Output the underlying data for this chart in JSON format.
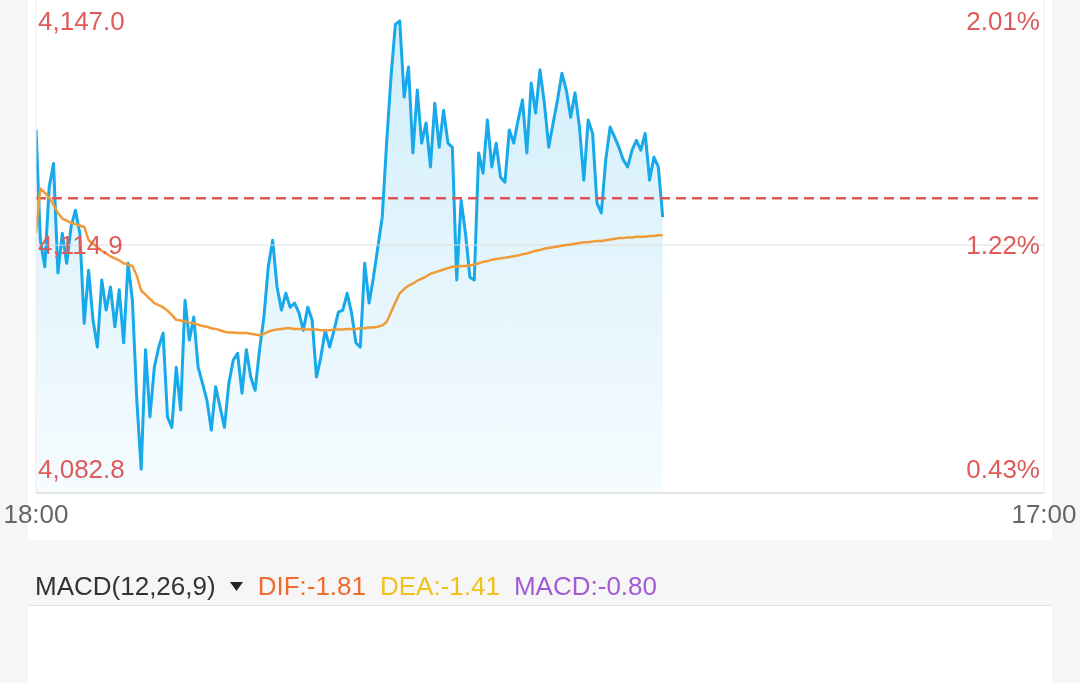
{
  "chart_data": [
    {
      "type": "line",
      "categories": [
        "18:00",
        null,
        null,
        null,
        null,
        null,
        null,
        null,
        null,
        null,
        null,
        null,
        null,
        null,
        null,
        null,
        null,
        null,
        null,
        null,
        null,
        null,
        null,
        null,
        null,
        null,
        null,
        null,
        null,
        null,
        null,
        null,
        null,
        null,
        null,
        null,
        null,
        null,
        null,
        null,
        null,
        null,
        null,
        null,
        null,
        null,
        null,
        null,
        null,
        null,
        null,
        null,
        null,
        null,
        null,
        null,
        null,
        null,
        null,
        null,
        null,
        null,
        null,
        null,
        null,
        null,
        null,
        null,
        null,
        null,
        null,
        null,
        null,
        null,
        null,
        null,
        null,
        null,
        null,
        null,
        null,
        null,
        null,
        null,
        null,
        null,
        null,
        null,
        null,
        null,
        null,
        null,
        null,
        null,
        null,
        null,
        null,
        null,
        null,
        null,
        null,
        null,
        null,
        null,
        null,
        null,
        null,
        null,
        null,
        null,
        null,
        null,
        null,
        null,
        null,
        null,
        null,
        null,
        null,
        null,
        null,
        null,
        null,
        null,
        null,
        null,
        null,
        null,
        null,
        null,
        null,
        null,
        null,
        null,
        null,
        null,
        null,
        null,
        null,
        null,
        null,
        null,
        null,
        null,
        null,
        null,
        null,
        null,
        null,
        null,
        null,
        null,
        null,
        null,
        null,
        null,
        null,
        null,
        null,
        null,
        null,
        null,
        null,
        null,
        null,
        null,
        null,
        null,
        null,
        null,
        null,
        null,
        null,
        null,
        null,
        null,
        null,
        null,
        null,
        null,
        null,
        null,
        null,
        null,
        null,
        null,
        null,
        null,
        null,
        null,
        null,
        null,
        null,
        null,
        null,
        null,
        null,
        null,
        null,
        null,
        null,
        null,
        null,
        null,
        null,
        null,
        null,
        null,
        null,
        null,
        null,
        null,
        null,
        null,
        null,
        null,
        null,
        null,
        null,
        null,
        null,
        null,
        null,
        null,
        null,
        null,
        null,
        null,
        null,
        null,
        "17:00"
      ],
      "ylim": [
        4079.4,
        4150.0
      ],
      "yticks": [
        {
          "value": 4082.8,
          "label": "4,082.8"
        },
        {
          "value": 4114.9,
          "label": "4,114.9"
        },
        {
          "value": 4147.0,
          "label": "4,147.0"
        }
      ],
      "y2lim": [
        0.346,
        2.084
      ],
      "y2ticks": [
        {
          "value": 0.43,
          "label": "0.43%"
        },
        {
          "value": 1.22,
          "label": "1.22%"
        },
        {
          "value": 2.01,
          "label": "2.01%"
        }
      ],
      "marker": "none",
      "series": [
        {
          "type": "area",
          "color": "#18a9ea",
          "values": [
            4131.4,
            4115.6,
            4111.8,
            4123.2,
            4126.6,
            4110.9,
            4116.6,
            4112.3,
            4117.5,
            4119.9,
            4116.6,
            4103.7,
            4111.3,
            4104.2,
            4100.3,
            4109.9,
            4105.6,
            4108.9,
            4103.2,
            4108.5,
            4100.9,
            4112.3,
            4107.0,
            4092.7,
            4082.8,
            4099.9,
            4090.3,
            4097.4,
            4100.3,
            4102.3,
            4090.3,
            4088.8,
            4097.4,
            4091.3,
            4107.0,
            4101.3,
            4104.6,
            4097.4,
            4095.1,
            4092.7,
            4088.4,
            4094.6,
            4091.7,
            4088.8,
            4095.1,
            4098.4,
            4099.4,
            4093.7,
            4099.9,
            4096.0,
            4094.1,
            4099.9,
            4104.6,
            4111.8,
            4115.6,
            4108.9,
            4105.6,
            4108.0,
            4106.0,
            4106.6,
            4105.2,
            4102.7,
            4106.0,
            4104.2,
            4096.0,
            4098.9,
            4102.7,
            4100.3,
            4102.7,
            4105.3,
            4105.6,
            4108.0,
            4105.2,
            4100.9,
            4100.3,
            4112.3,
            4106.6,
            4110.3,
            4114.6,
            4118.9,
            4129.5,
            4139.0,
            4146.5,
            4147.0,
            4136.1,
            4140.4,
            4128.1,
            4137.1,
            4129.5,
            4132.4,
            4126.1,
            4135.2,
            4128.9,
            4134.2,
            4129.5,
            4128.9,
            4109.9,
            4121.3,
            4116.6,
            4110.3,
            4109.9,
            4128.1,
            4125.2,
            4132.8,
            4126.1,
            4129.5,
            4124.6,
            4123.9,
            4131.4,
            4129.5,
            4132.8,
            4135.7,
            4128.1,
            4138.1,
            4133.8,
            4140.0,
            4135.2,
            4128.9,
            4132.4,
            4135.7,
            4139.5,
            4137.1,
            4133.2,
            4136.7,
            4131.8,
            4124.2,
            4132.8,
            4130.9,
            4120.9,
            4119.5,
            4127.1,
            4131.8,
            4130.4,
            4128.9,
            4127.1,
            4126.1,
            4128.5,
            4129.9,
            4128.5,
            4130.9,
            4124.2,
            4127.5,
            4126.1,
            4118.9,
            null,
            null,
            null,
            null,
            null,
            null,
            null,
            null,
            null,
            null,
            null,
            null,
            null,
            null,
            null,
            null,
            null,
            null,
            null,
            null,
            null,
            null,
            null,
            null,
            null,
            null,
            null,
            null,
            null,
            null,
            null,
            null,
            null,
            null,
            null,
            null,
            null,
            null,
            null,
            null,
            null,
            null,
            null,
            null,
            null,
            null,
            null,
            null,
            null,
            null,
            null,
            null,
            null,
            null,
            null,
            null,
            null,
            null,
            null,
            null,
            null,
            null,
            null,
            null,
            null,
            null,
            null,
            null,
            null,
            null,
            null,
            null,
            null,
            null,
            null,
            null,
            null,
            null,
            null,
            null,
            null,
            null,
            null,
            null,
            null,
            null,
            null
          ]
        },
        {
          "type": "line",
          "color": "#ee9b38",
          "values": [
            4116.6,
            4123.0,
            4122.4,
            4121.7,
            4120.7,
            4119.5,
            4118.7,
            4118.4,
            4118.1,
            4117.9,
            4117.7,
            4117.5,
            4115.6,
            4115.1,
            4114.6,
            4114.1,
            4113.7,
            4113.3,
            4113.0,
            4112.7,
            4112.3,
            4112.1,
            4111.9,
            4110.5,
            4108.4,
            4107.8,
            4107.2,
            4106.6,
            4106.3,
            4106.0,
            4105.5,
            4104.9,
            4104.2,
            4104.1,
            4104.0,
            4103.8,
            4103.7,
            4103.5,
            4103.3,
            4103.2,
            4103.0,
            4102.9,
            4102.7,
            4102.5,
            4102.4,
            4102.4,
            4102.3,
            4102.3,
            4102.3,
            4102.2,
            4102.1,
            4102.0,
            4102.2,
            4102.5,
            4102.7,
            4102.8,
            4102.9,
            4103.0,
            4103.0,
            4102.9,
            4102.9,
            4102.9,
            4102.8,
            4102.8,
            4102.8,
            4102.7,
            4102.7,
            4102.7,
            4102.8,
            4102.8,
            4102.8,
            4102.9,
            4102.9,
            4102.9,
            4103.0,
            4103.0,
            4103.1,
            4103.1,
            4103.2,
            4103.4,
            4103.9,
            4105.3,
            4106.7,
            4108.0,
            4108.6,
            4109.1,
            4109.4,
            4109.8,
            4110.1,
            4110.4,
            4110.8,
            4111.0,
            4111.2,
            4111.4,
            4111.6,
            4111.8,
            4111.8,
            4111.9,
            4111.9,
            4112.0,
            4112.1,
            4112.3,
            4112.5,
            4112.6,
            4112.8,
            4112.9,
            4113.0,
            4113.1,
            4113.2,
            4113.3,
            4113.4,
            4113.6,
            4113.7,
            4113.9,
            4114.1,
            4114.2,
            4114.4,
            4114.5,
            4114.6,
            4114.7,
            4114.8,
            4114.9,
            4115.0,
            4115.1,
            4115.2,
            4115.3,
            4115.3,
            4115.4,
            4115.5,
            4115.5,
            4115.6,
            4115.7,
            4115.8,
            4115.9,
            4115.9,
            4116.0,
            4116.0,
            4116.1,
            4116.1,
            4116.1,
            4116.2,
            4116.2,
            4116.3,
            4116.3,
            null,
            null,
            null,
            null,
            null,
            null,
            null,
            null,
            null,
            null,
            null,
            null,
            null,
            null,
            null,
            null,
            null,
            null,
            null,
            null,
            null,
            null,
            null,
            null,
            null,
            null,
            null,
            null,
            null,
            null,
            null,
            null,
            null,
            null,
            null,
            null,
            null,
            null,
            null,
            null,
            null,
            null,
            null,
            null,
            null,
            null,
            null,
            null,
            null,
            null,
            null,
            null,
            null,
            null,
            null,
            null,
            null,
            null,
            null,
            null,
            null,
            null,
            null,
            null,
            null,
            null,
            null,
            null,
            null,
            null,
            null,
            null,
            null,
            null,
            null,
            null,
            null,
            null,
            null,
            null,
            null,
            null,
            null,
            null,
            null,
            null,
            null
          ]
        }
      ],
      "ref_lines": [
        {
          "axis": "y",
          "value": 4114.9,
          "color": "#dddddd",
          "line_style": "solid"
        },
        {
          "axis": "y",
          "value": 4121.6,
          "color": "#e05555",
          "line_style": "dashed"
        }
      ]
    },
    {
      "type": "other",
      "title": "MACD(12,26,9)",
      "annotations": [
        "DIF:-1.81",
        "DEA:-1.41",
        "MACD:-0.80"
      ],
      "colors": [
        "#ef6c2e",
        "#f1c21b",
        "#a25bd5"
      ]
    }
  ]
}
